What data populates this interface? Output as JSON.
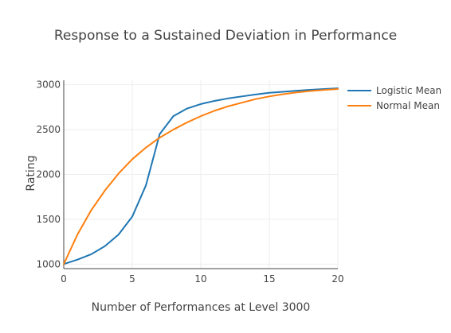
{
  "chart_data": {
    "type": "line",
    "title": "Response to a Sustained Deviation in Performance",
    "xlabel": "Number of Performances at Level 3000",
    "ylabel": "Rating",
    "xlim": [
      0,
      20
    ],
    "ylim": [
      950,
      3050
    ],
    "x_ticks": [
      0,
      5,
      10,
      15,
      20
    ],
    "x_tick_labels": [
      "0",
      "5",
      "10",
      "15",
      "20"
    ],
    "y_ticks": [
      1000,
      1500,
      2000,
      2500,
      3000
    ],
    "y_tick_labels": [
      "1000",
      "1500",
      "2000",
      "2500",
      "3000"
    ],
    "grid": true,
    "legend_position": "right-top",
    "x": [
      0,
      1,
      2,
      3,
      4,
      5,
      6,
      7,
      8,
      9,
      10,
      11,
      12,
      13,
      14,
      15,
      16,
      17,
      18,
      19,
      20
    ],
    "series": [
      {
        "name": "Logistic Mean",
        "color": "#1f77b4",
        "values": [
          1000,
          1050,
          1110,
          1200,
          1330,
          1530,
          1880,
          2450,
          2650,
          2735,
          2785,
          2820,
          2848,
          2870,
          2892,
          2910,
          2922,
          2934,
          2944,
          2952,
          2960
        ]
      },
      {
        "name": "Normal Mean",
        "color": "#ff7f0e",
        "values": [
          1000,
          1330,
          1600,
          1820,
          2010,
          2170,
          2300,
          2410,
          2500,
          2580,
          2650,
          2710,
          2760,
          2800,
          2840,
          2870,
          2895,
          2915,
          2930,
          2942,
          2952
        ]
      }
    ]
  }
}
